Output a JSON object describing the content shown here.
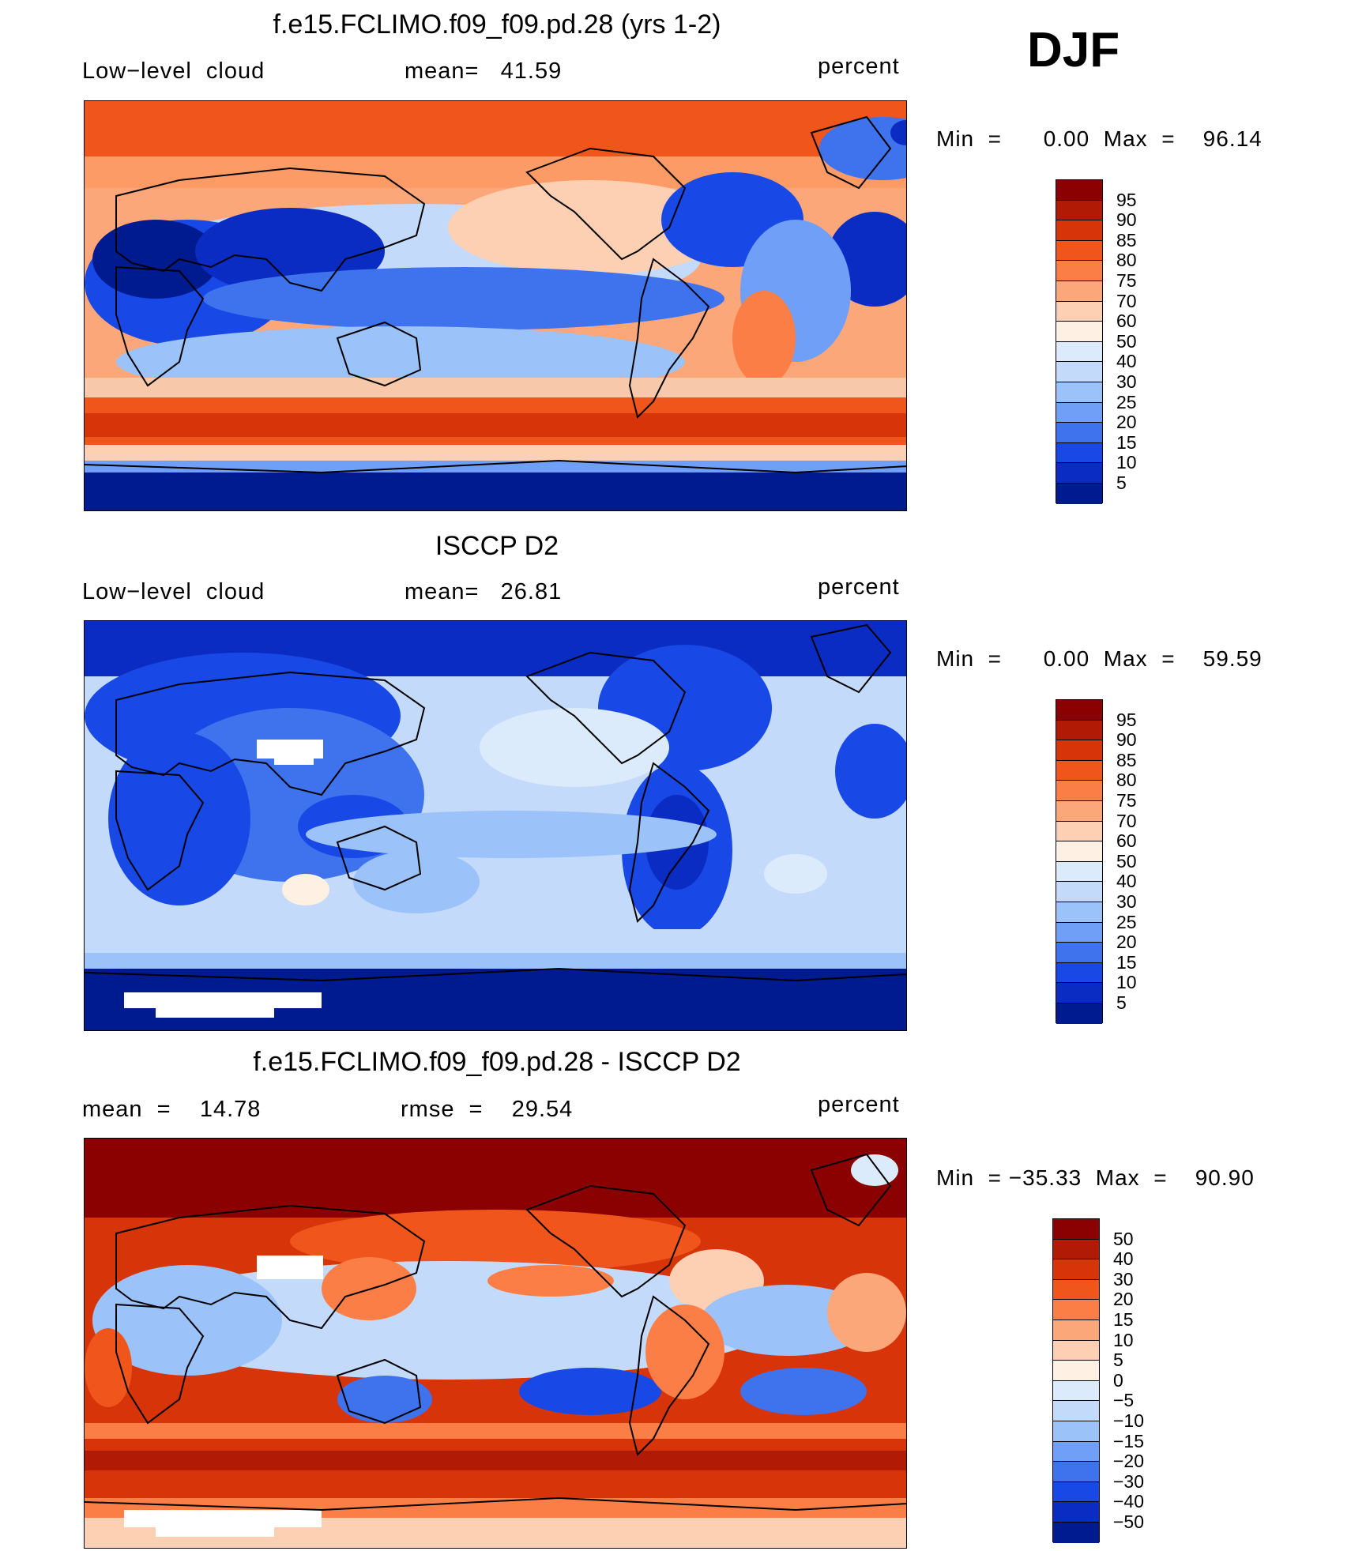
{
  "season": "DJF",
  "colors": {
    "standard_scale": [
      "#8b0000",
      "#b11a04",
      "#d7340a",
      "#f0551c",
      "#fc7e47",
      "#fca779",
      "#fdd0b4",
      "#fef0e2",
      "#dcebfb",
      "#c3dafb",
      "#9cc2fa",
      "#6f9ff6",
      "#3f73ee",
      "#1848e6",
      "#0b2cc3",
      "#001a8f"
    ],
    "diff_scale": [
      "#8b0000",
      "#b11a04",
      "#d7340a",
      "#f0551c",
      "#fc7e47",
      "#fca779",
      "#fdd0b4",
      "#fef0e2",
      "#dcebfb",
      "#c3dafb",
      "#9cc2fa",
      "#6f9ff6",
      "#3f73ee",
      "#1848e6",
      "#0b2cc3",
      "#001a8f"
    ]
  },
  "panels": [
    {
      "title": "f.e15.FCLIMO.f09_f09.pd.28 (yrs 1-2)",
      "left_label": "Low−level  cloud",
      "mid_label": "mean=   41.59",
      "right_label": "percent",
      "minmax": "Min  =      0.00  Max  =    96.14",
      "map_icon": "low-cloud-model-field-icon",
      "colorbar_labels": [
        "95",
        "90",
        "85",
        "80",
        "75",
        "70",
        "60",
        "50",
        "40",
        "30",
        "25",
        "20",
        "15",
        "10",
        "5"
      ]
    },
    {
      "title": "ISCCP D2",
      "left_label": "Low−level  cloud",
      "mid_label": "mean=   26.81",
      "right_label": "percent",
      "minmax": "Min  =      0.00  Max  =    59.59",
      "map_icon": "low-cloud-observed-field-icon",
      "colorbar_labels": [
        "95",
        "90",
        "85",
        "80",
        "75",
        "70",
        "60",
        "50",
        "40",
        "30",
        "25",
        "20",
        "15",
        "10",
        "5"
      ]
    },
    {
      "title": "f.e15.FCLIMO.f09_f09.pd.28 - ISCCP D2",
      "left_label": "mean  =    14.78",
      "mid_label": "rmse  =    29.54",
      "right_label": "percent",
      "minmax": "Min  = −35.33  Max  =    90.90",
      "map_icon": "low-cloud-difference-field-icon",
      "colorbar_labels": [
        "50",
        "40",
        "30",
        "20",
        "15",
        "10",
        "5",
        "0",
        "−5",
        "−10",
        "−15",
        "−20",
        "−30",
        "−40",
        "−50"
      ]
    }
  ]
}
